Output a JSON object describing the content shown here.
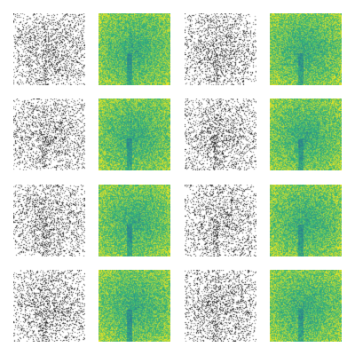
{
  "image": {
    "description_kind": "grid-of-noise-textures",
    "rows": 4,
    "columns": 4,
    "column_styles": [
      "grayscale-speckle",
      "viridis-heat",
      "grayscale-speckle",
      "viridis-heat"
    ],
    "colors": {
      "background": "#ffffff",
      "gray_dark": "#1a1a1a",
      "gray_mid": "#7a7a7a",
      "viridis_low": "#2d7f8e",
      "viridis_mid": "#35b779",
      "viridis_high": "#f4e61e"
    }
  }
}
